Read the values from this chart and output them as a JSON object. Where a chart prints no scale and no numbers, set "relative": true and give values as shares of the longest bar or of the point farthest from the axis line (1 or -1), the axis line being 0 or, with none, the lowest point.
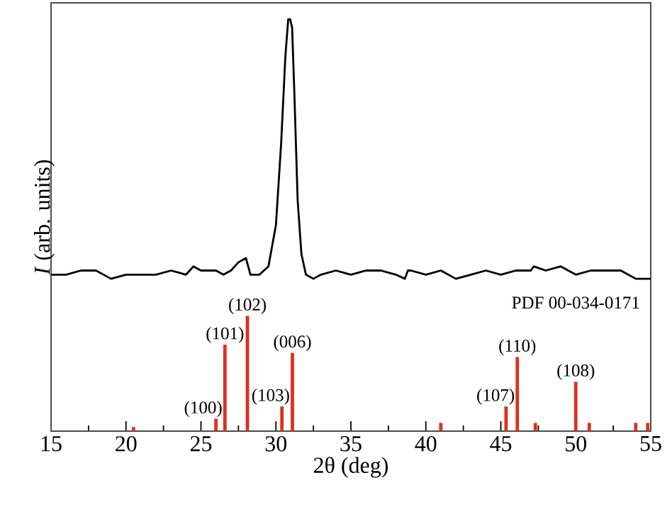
{
  "chart_data": {
    "type": "line",
    "relative": true,
    "xlabel": "2θ (deg)",
    "ylabel": "*I* (arb. units)",
    "xlim": [
      15,
      55
    ],
    "xticks": [
      15,
      20,
      25,
      30,
      35,
      40,
      45,
      50,
      55
    ],
    "series": [
      {
        "color": "#000000",
        "x": [
          15,
          16,
          17,
          18,
          19,
          20,
          21,
          22,
          23,
          24,
          24.5,
          25,
          26,
          26.5,
          27,
          27.5,
          28.0,
          28.3,
          28.9,
          29.5,
          30.0,
          30.35,
          30.63,
          30.82,
          30.95,
          31.08,
          31.23,
          31.45,
          31.7,
          32.0,
          32.5,
          33,
          34,
          35,
          36,
          37,
          38,
          38.6,
          38.8,
          39,
          40,
          41,
          42,
          43,
          44,
          45,
          46,
          47,
          47.2,
          48,
          49,
          50,
          51,
          52,
          53,
          54,
          55
        ],
        "values": [
          0.38,
          0.38,
          0.39,
          0.39,
          0.37,
          0.38,
          0.38,
          0.38,
          0.39,
          0.38,
          0.4,
          0.39,
          0.39,
          0.38,
          0.39,
          0.41,
          0.42,
          0.38,
          0.38,
          0.4,
          0.5,
          0.7,
          0.91,
          1.0,
          1.0,
          0.98,
          0.82,
          0.56,
          0.43,
          0.38,
          0.37,
          0.38,
          0.39,
          0.38,
          0.39,
          0.39,
          0.38,
          0.37,
          0.39,
          0.39,
          0.38,
          0.39,
          0.37,
          0.38,
          0.39,
          0.38,
          0.39,
          0.39,
          0.4,
          0.39,
          0.4,
          0.38,
          0.39,
          0.39,
          0.39,
          0.37,
          0.37
        ]
      },
      {
        "type": "bar",
        "color": "#e0301e",
        "x": [
          20.5,
          26.0,
          26.6,
          28.1,
          30.4,
          31.1,
          41.0,
          45.35,
          46.1,
          47.3,
          50.0,
          50.9,
          54.0,
          54.8
        ],
        "values": [
          0.01,
          0.03,
          0.21,
          0.28,
          0.06,
          0.19,
          0.02,
          0.06,
          0.18,
          0.02,
          0.12,
          0.02,
          0.02,
          0.02
        ]
      }
    ],
    "annotations": [
      {
        "text": "(100)",
        "x": 26.0,
        "y": 0.03
      },
      {
        "text": "(101)",
        "x": 26.6,
        "y": 0.21
      },
      {
        "text": "(102)",
        "x": 28.1,
        "y": 0.28
      },
      {
        "text": "(103)",
        "x": 30.4,
        "y": 0.06
      },
      {
        "text": "(006)",
        "x": 31.1,
        "y": 0.19
      },
      {
        "text": "(107)",
        "x": 45.35,
        "y": 0.06
      },
      {
        "text": "(110)",
        "x": 46.1,
        "y": 0.18
      },
      {
        "text": "(108)",
        "x": 50.0,
        "y": 0.12
      },
      "PDF 00-034-0171"
    ]
  }
}
